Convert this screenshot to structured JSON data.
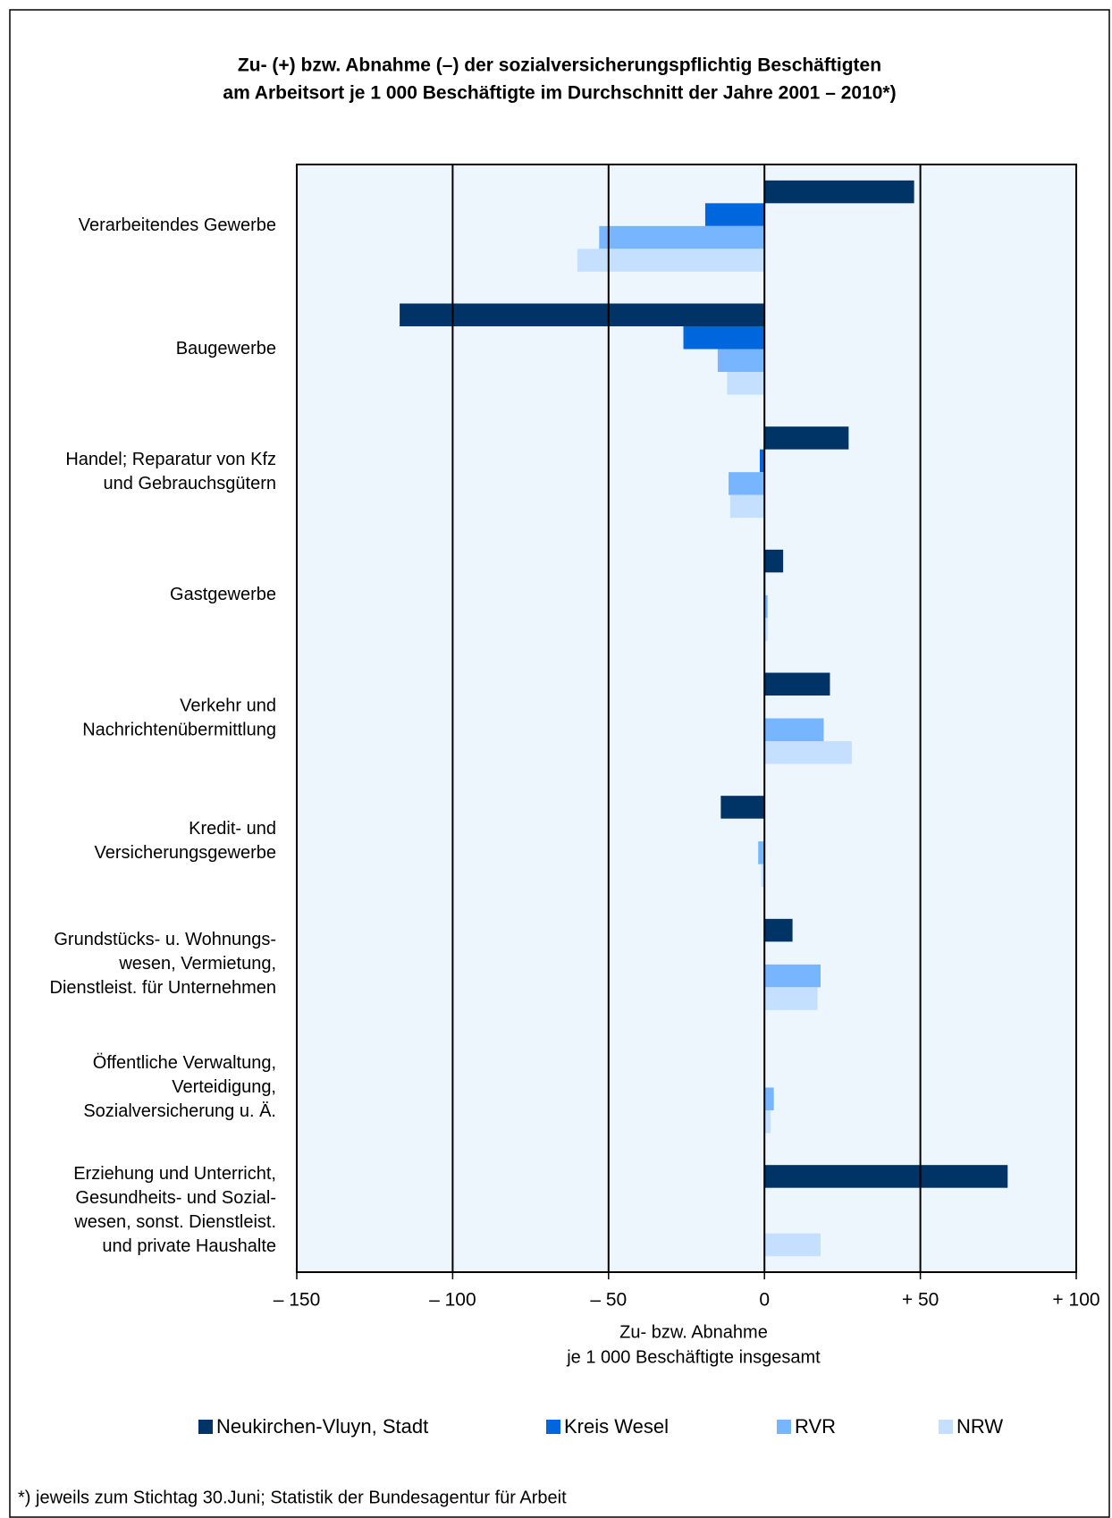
{
  "chart_data": {
    "type": "hbar",
    "title": [
      "Zu- (+) bzw. Abnahme (–) der sozialversicherungspflichtig Beschäftigten",
      "am Arbeitsort  je 1 000 Beschäftigte im Durchschnitt der Jahre 2001 – 2010*)"
    ],
    "categories": [
      [
        "Verarbeitendes Gewerbe"
      ],
      [
        "Baugewerbe"
      ],
      [
        "Handel; Reparatur von Kfz",
        "und Gebrauchsgütern"
      ],
      [
        "Gastgewerbe"
      ],
      [
        "Verkehr und",
        "Nachrichtenübermittlung"
      ],
      [
        "Kredit- und",
        "Versicherungsgewerbe"
      ],
      [
        "Grundstücks- u. Wohnungs-",
        "wesen, Vermietung,",
        "Dienstleist. für Unternehmen"
      ],
      [
        "Öffentliche Verwaltung,",
        "Verteidigung,",
        "Sozialversicherung u. Ä."
      ],
      [
        "Erziehung und Unterricht,",
        "Gesundheits- und Sozial-",
        "wesen, sonst. Dienstleist.",
        "und private Haushalte"
      ]
    ],
    "series": [
      {
        "name": "Neukirchen-Vluyn, Stadt",
        "color": "#003366",
        "values": [
          48,
          -117,
          27,
          6,
          21,
          -14,
          9,
          0,
          78
        ]
      },
      {
        "name": "Kreis Wesel",
        "color": "#0066dd",
        "values": [
          -19,
          -26,
          -1.5,
          0.3,
          0,
          0,
          0,
          0,
          0
        ]
      },
      {
        "name": "RVR",
        "color": "#77b5ff",
        "values": [
          -53,
          -15,
          -11.5,
          1,
          19,
          -2,
          18,
          3,
          0
        ]
      },
      {
        "name": "NRW",
        "color": "#c4dfff",
        "values": [
          -60,
          -12,
          -11,
          1,
          28,
          -1,
          17,
          2,
          18
        ]
      }
    ],
    "xlim": [
      -150,
      100
    ],
    "xticks": [
      {
        "value": -150,
        "label": "– 150"
      },
      {
        "value": -100,
        "label": "– 100"
      },
      {
        "value": -50,
        "label": "– 50"
      },
      0,
      {
        "value": 50,
        "label": "+ 50"
      },
      {
        "value": 100,
        "label": "+ 100"
      }
    ],
    "x_label": [
      "Zu- bzw. Abnahme",
      "je 1 000 Beschäftigte insgesamt"
    ],
    "grid": true,
    "footnote": "*) jeweils zum Stichtag 30.Juni; Statistik der Bundesagentur für Arbeit"
  }
}
